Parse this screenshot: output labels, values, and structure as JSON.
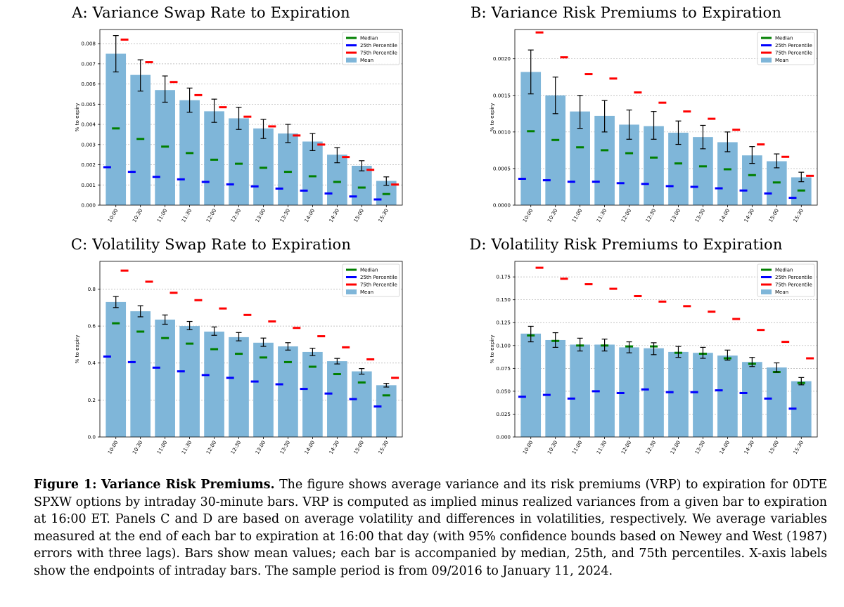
{
  "colors": {
    "bar": "#7fb6d9",
    "median": "#007f00",
    "p25": "#0000ff",
    "p75": "#ff0000",
    "error": "#000000",
    "grid": "#b0b0b0"
  },
  "legend_labels": [
    "Median",
    "25th Percentile",
    "75th Percentile",
    "Mean"
  ],
  "chart_data": [
    {
      "type": "bar",
      "title": "A: Variance Swap Rate to Expiration",
      "ylabel": "% to expiry",
      "xlabel": "",
      "grid": true,
      "legend": "top-right",
      "ylim": [
        0,
        0.0087
      ],
      "yticks": [
        0,
        0.001,
        0.002,
        0.003,
        0.004,
        0.005,
        0.006,
        0.007,
        0.008
      ],
      "ytick_labels": [
        "0.000",
        "0.001",
        "0.002",
        "0.003",
        "0.004",
        "0.005",
        "0.006",
        "0.007",
        "0.008"
      ],
      "categories": [
        "10:00",
        "10:30",
        "11:00",
        "11:30",
        "12:00",
        "12:30",
        "13:00",
        "13:30",
        "14:00",
        "14:30",
        "15:00",
        "15:30"
      ],
      "series": [
        {
          "name": "Mean",
          "values": [
            0.0075,
            0.00645,
            0.0057,
            0.0052,
            0.00465,
            0.0043,
            0.0038,
            0.00355,
            0.00315,
            0.0025,
            0.00195,
            0.0012
          ]
        },
        {
          "name": "Mean CI low",
          "values": [
            0.0066,
            0.00565,
            0.0051,
            0.0046,
            0.0041,
            0.00375,
            0.0033,
            0.0031,
            0.0027,
            0.0021,
            0.0017,
            0.00098
          ]
        },
        {
          "name": "Mean CI high",
          "values": [
            0.0084,
            0.0072,
            0.0064,
            0.0058,
            0.00525,
            0.00485,
            0.00425,
            0.004,
            0.00355,
            0.00285,
            0.0022,
            0.0014
          ]
        },
        {
          "name": "Median",
          "values": [
            0.0038,
            0.00328,
            0.0029,
            0.00258,
            0.00225,
            0.00205,
            0.00185,
            0.00165,
            0.00143,
            0.00115,
            0.00087,
            0.00055
          ]
        },
        {
          "name": "25th Percentile",
          "values": [
            0.00188,
            0.00165,
            0.0014,
            0.00128,
            0.00115,
            0.00103,
            0.00093,
            0.00082,
            0.00072,
            0.00058,
            0.00043,
            0.00028
          ]
        },
        {
          "name": "75th Percentile",
          "values": [
            0.0082,
            0.00708,
            0.0061,
            0.00545,
            0.00485,
            0.00438,
            0.0039,
            0.00345,
            0.003,
            0.00238,
            0.00175,
            0.00102
          ]
        }
      ]
    },
    {
      "type": "bar",
      "title": "B: Variance Risk Premiums to Expiration",
      "ylabel": "% to expiry",
      "xlabel": "",
      "grid": true,
      "legend": "top-right",
      "ylim": [
        0,
        0.0024
      ],
      "yticks": [
        0,
        0.0005,
        0.001,
        0.0015,
        0.002
      ],
      "ytick_labels": [
        "0.0000",
        "0.0005",
        "0.0010",
        "0.0015",
        "0.0020"
      ],
      "categories": [
        "10:00",
        "10:30",
        "11:00",
        "11:30",
        "12:00",
        "12:30",
        "13:00",
        "13:30",
        "14:00",
        "14:30",
        "15:00",
        "15:30"
      ],
      "series": [
        {
          "name": "Mean",
          "values": [
            0.00182,
            0.0015,
            0.00128,
            0.00122,
            0.0011,
            0.00108,
            0.00099,
            0.00093,
            0.00086,
            0.00068,
            0.0006,
            0.00038
          ]
        },
        {
          "name": "Mean CI low",
          "values": [
            0.00152,
            0.00125,
            0.00105,
            0.001,
            0.0009,
            0.0009,
            0.00083,
            0.00077,
            0.00073,
            0.00057,
            0.00051,
            0.00032
          ]
        },
        {
          "name": "Mean CI high",
          "values": [
            0.00212,
            0.00175,
            0.0015,
            0.00143,
            0.0013,
            0.00128,
            0.00115,
            0.00109,
            0.001,
            0.0008,
            0.0007,
            0.00045
          ]
        },
        {
          "name": "Median",
          "values": [
            0.00101,
            0.00089,
            0.00079,
            0.00075,
            0.00071,
            0.00065,
            0.00057,
            0.00053,
            0.00049,
            0.00041,
            0.00031,
            0.0002
          ]
        },
        {
          "name": "25th Percentile",
          "values": [
            0.00036,
            0.00034,
            0.00032,
            0.00032,
            0.0003,
            0.00029,
            0.00026,
            0.00025,
            0.00023,
            0.0002,
            0.00016,
            0.0001
          ]
        },
        {
          "name": "75th Percentile",
          "values": [
            0.00236,
            0.00202,
            0.00179,
            0.00173,
            0.00154,
            0.0014,
            0.00128,
            0.00118,
            0.00103,
            0.00083,
            0.00066,
            0.0004
          ]
        }
      ]
    },
    {
      "type": "bar",
      "title": "C: Volatility Swap Rate to Expiration",
      "ylabel": "% to expiry",
      "xlabel": "",
      "grid": true,
      "legend": "top-right",
      "ylim": [
        0,
        0.95
      ],
      "yticks": [
        0,
        0.2,
        0.4,
        0.6,
        0.8
      ],
      "ytick_labels": [
        "0.0",
        "0.2",
        "0.4",
        "0.6",
        "0.8"
      ],
      "categories": [
        "10:00",
        "10:30",
        "11:00",
        "11:30",
        "12:00",
        "12:30",
        "13:00",
        "13:30",
        "14:00",
        "14:30",
        "15:00",
        "15:30"
      ],
      "series": [
        {
          "name": "Mean",
          "values": [
            0.73,
            0.68,
            0.635,
            0.6,
            0.57,
            0.54,
            0.51,
            0.49,
            0.46,
            0.41,
            0.355,
            0.28
          ]
        },
        {
          "name": "Mean CI low",
          "values": [
            0.7,
            0.65,
            0.61,
            0.58,
            0.55,
            0.52,
            0.49,
            0.47,
            0.44,
            0.395,
            0.34,
            0.27
          ]
        },
        {
          "name": "Mean CI high",
          "values": [
            0.76,
            0.71,
            0.66,
            0.625,
            0.595,
            0.565,
            0.535,
            0.51,
            0.48,
            0.425,
            0.37,
            0.29
          ]
        },
        {
          "name": "Median",
          "values": [
            0.615,
            0.57,
            0.535,
            0.505,
            0.475,
            0.45,
            0.43,
            0.405,
            0.38,
            0.34,
            0.295,
            0.225
          ]
        },
        {
          "name": "25th Percentile",
          "values": [
            0.435,
            0.405,
            0.375,
            0.355,
            0.335,
            0.32,
            0.3,
            0.285,
            0.26,
            0.235,
            0.205,
            0.165
          ]
        },
        {
          "name": "75th Percentile",
          "values": [
            0.9,
            0.84,
            0.78,
            0.74,
            0.695,
            0.66,
            0.625,
            0.59,
            0.545,
            0.485,
            0.42,
            0.32
          ]
        }
      ]
    },
    {
      "type": "bar",
      "title": "D: Volatility Risk Premiums to Expiration",
      "ylabel": "% to expiry",
      "xlabel": "",
      "grid": true,
      "legend": "top-right",
      "ylim": [
        0,
        0.192
      ],
      "yticks": [
        0,
        0.025,
        0.05,
        0.075,
        0.1,
        0.125,
        0.15,
        0.175
      ],
      "ytick_labels": [
        "0.000",
        "0.025",
        "0.050",
        "0.075",
        "0.100",
        "0.125",
        "0.150",
        "0.175"
      ],
      "categories": [
        "10:00",
        "10:30",
        "11:00",
        "11:30",
        "12:00",
        "12:30",
        "13:00",
        "13:30",
        "14:00",
        "14:30",
        "15:00",
        "15:30"
      ],
      "series": [
        {
          "name": "Mean",
          "values": [
            0.113,
            0.106,
            0.101,
            0.101,
            0.098,
            0.097,
            0.093,
            0.092,
            0.089,
            0.082,
            0.076,
            0.061
          ]
        },
        {
          "name": "Mean CI low",
          "values": [
            0.104,
            0.098,
            0.094,
            0.094,
            0.092,
            0.09,
            0.087,
            0.086,
            0.084,
            0.077,
            0.071,
            0.057
          ]
        },
        {
          "name": "Mean CI high",
          "values": [
            0.121,
            0.114,
            0.108,
            0.107,
            0.104,
            0.103,
            0.099,
            0.098,
            0.095,
            0.087,
            0.081,
            0.065
          ]
        },
        {
          "name": "Median",
          "values": [
            0.111,
            0.105,
            0.1,
            0.1,
            0.099,
            0.099,
            0.092,
            0.091,
            0.086,
            0.08,
            0.071,
            0.059
          ]
        },
        {
          "name": "25th Percentile",
          "values": [
            0.044,
            0.046,
            0.042,
            0.05,
            0.048,
            0.052,
            0.049,
            0.049,
            0.051,
            0.048,
            0.042,
            0.031
          ]
        },
        {
          "name": "75th Percentile",
          "values": [
            0.185,
            0.173,
            0.167,
            0.162,
            0.154,
            0.148,
            0.143,
            0.137,
            0.129,
            0.117,
            0.104,
            0.086
          ]
        }
      ]
    }
  ],
  "caption": {
    "label": "Figure 1:",
    "title": "Variance Risk Premiums.",
    "text": "The figure shows average variance and its risk premiums (VRP) to expiration for 0DTE SPXW options by intraday 30-minute bars. VRP is computed as implied minus realized variances from a given bar to expiration at 16:00 ET. Panels C and D are based on average volatility and differences in volatilities, respectively. We average variables measured at the end of each bar to expiration at 16:00 that day (with 95% confidence bounds based on Newey and West (1987) errors with three lags). Bars show mean values; each bar is accompanied by median, 25th, and 75th percentiles. X-axis labels show the endpoints of intraday bars. The sample period is from 09/2016 to January 11, 2024."
  }
}
